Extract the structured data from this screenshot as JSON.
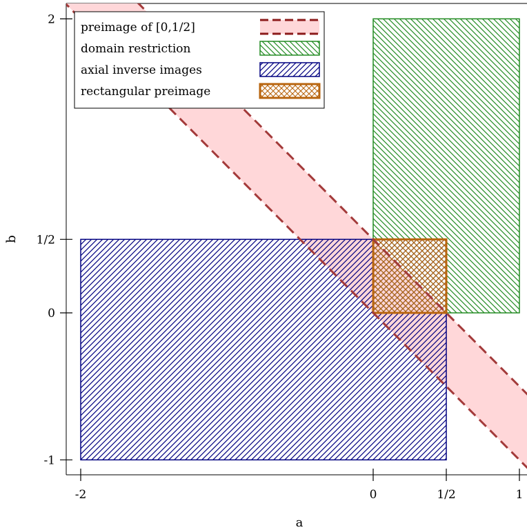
{
  "chart_data": {
    "type": "region",
    "title": "",
    "xlabel": "a",
    "ylabel": "b",
    "xlim": [
      -2.1,
      1.05
    ],
    "ylim": [
      -1.1,
      2.1
    ],
    "x_ticks": [
      {
        "value": -2,
        "label": "-2"
      },
      {
        "value": 0,
        "label": "0"
      },
      {
        "value": 0.5,
        "label": "1/2"
      },
      {
        "value": 1,
        "label": "1"
      }
    ],
    "y_ticks": [
      {
        "value": -1,
        "label": "-1"
      },
      {
        "value": 0,
        "label": "0"
      },
      {
        "value": 0.5,
        "label": "1/2"
      },
      {
        "value": 2,
        "label": "2"
      }
    ],
    "grid": false,
    "legend_position": "top-left",
    "series": [
      {
        "name": "preimage of [0,1/2]",
        "kind": "band",
        "description_points": "region 0 <= a + b <= 1/2",
        "lower_sum": 0,
        "upper_sum": 0.5,
        "fill": "#ffd7d9",
        "line_color": "#a33a3a",
        "legend_line_color": "#8b1a1a"
      },
      {
        "name": "domain restriction",
        "kind": "rect",
        "x": [
          0,
          1
        ],
        "y": [
          0,
          2
        ],
        "hatch": "backslash",
        "color": "#228b22"
      },
      {
        "name": "axial inverse images",
        "kind": "rect",
        "x": [
          -2,
          0.5
        ],
        "y": [
          -1,
          0.5
        ],
        "hatch": "slash",
        "color": "#000080"
      },
      {
        "name": "rectangular preimage",
        "kind": "rect",
        "x": [
          0,
          0.5
        ],
        "y": [
          0,
          0.5
        ],
        "hatch": "cross",
        "color": "#b8650f"
      }
    ]
  }
}
